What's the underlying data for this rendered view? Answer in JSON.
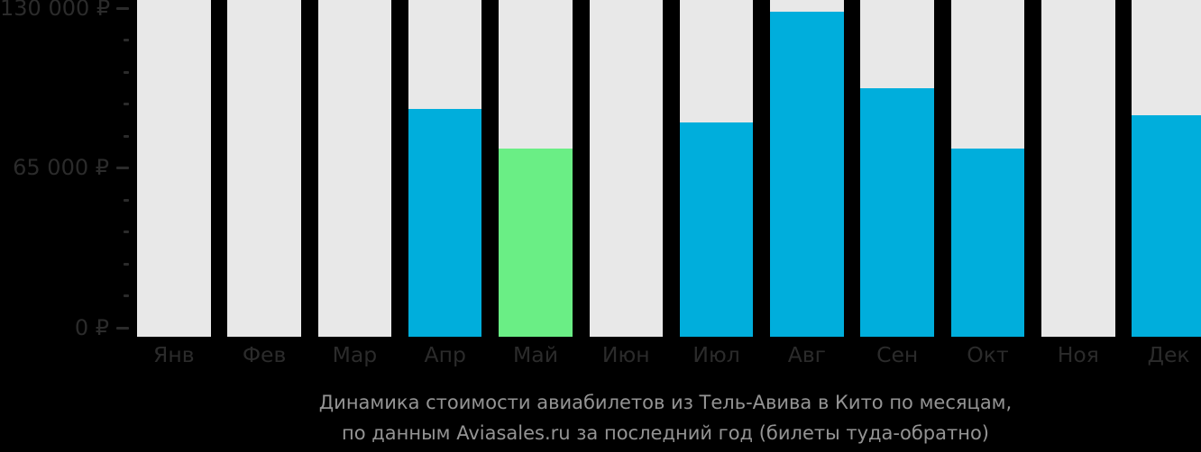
{
  "title": {
    "line1": "Динамика стоимости авиабилетов из Тель-Авива в Кито по месяцам,",
    "line2": "по данным Aviasales.ru за последний год (билеты туда-обратно)"
  },
  "y_axis": {
    "major_labels": [
      "130 000 ₽",
      "65 000 ₽",
      "0 ₽"
    ],
    "major_values": [
      130000,
      65000,
      0
    ],
    "minor_tick_step": 13000,
    "max": 130000
  },
  "chart_data": {
    "type": "bar",
    "title": "Динамика стоимости авиабилетов из Тель-Авива в Кито по месяцам, по данным Aviasales.ru за последний год (билеты туда-обратно)",
    "categories": [
      "Янв",
      "Фев",
      "Мар",
      "Апр",
      "Май",
      "Июн",
      "Июл",
      "Авг",
      "Сен",
      "Окт",
      "Ноя",
      "Дек"
    ],
    "values": [
      null,
      null,
      null,
      89000,
      73000,
      null,
      83500,
      128500,
      97500,
      73000,
      null,
      86500
    ],
    "no_data_categories": [
      "Янв",
      "Фев",
      "Мар",
      "Июн",
      "Ноя"
    ],
    "highlight_min": {
      "category": "Май",
      "value": 73000
    },
    "xlabel": "",
    "ylabel": "",
    "ylim": [
      0,
      130000
    ],
    "grid": false,
    "legend": false
  },
  "colors": {
    "background": "#000000",
    "bar_default": "#00AEDC",
    "bar_min": "#6AEE85",
    "bar_empty": "#E8E8E8",
    "axis_text": "#2B2B2B",
    "title_text": "#949494"
  }
}
